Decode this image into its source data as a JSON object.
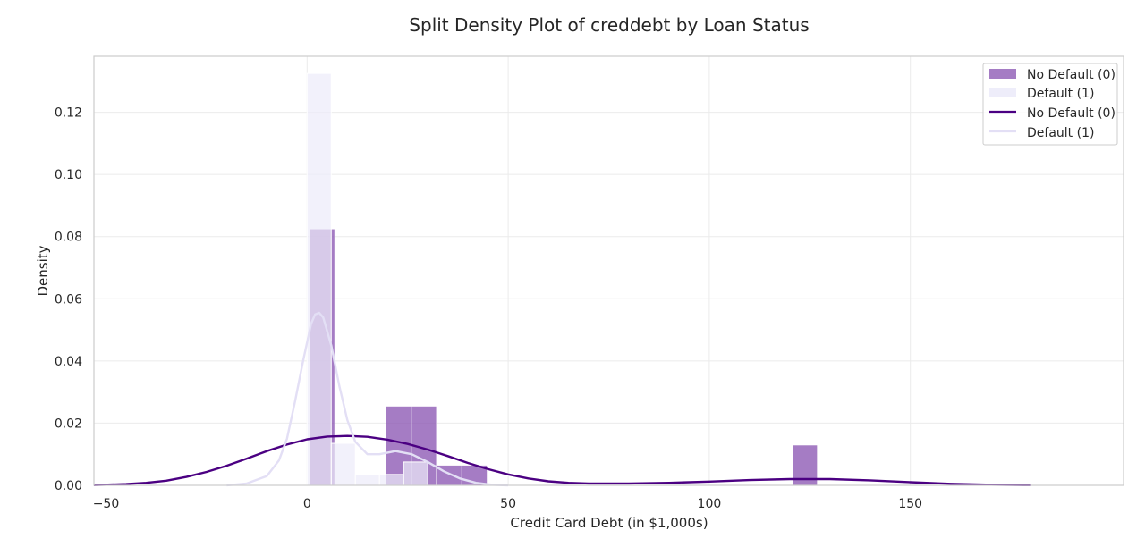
{
  "chart_data": {
    "type": "histogram-with-kde",
    "title": "Split Density Plot of creddebt by Loan Status",
    "xlabel": "Credit Card Debt (in $1,000s)",
    "ylabel": "Density",
    "xlim": [
      -53,
      203
    ],
    "ylim": [
      0,
      0.138
    ],
    "xticks": [
      -50,
      0,
      50,
      100,
      150
    ],
    "xtick_labels": [
      "−50",
      "0",
      "50",
      "100",
      "150"
    ],
    "yticks": [
      0.0,
      0.02,
      0.04,
      0.06,
      0.08,
      0.1,
      0.12
    ],
    "ytick_labels": [
      "0.00",
      "0.02",
      "0.04",
      "0.06",
      "0.08",
      "0.10",
      "0.12"
    ],
    "grid": true,
    "legend_position": "top-right",
    "legend": [
      "No Default (0)",
      "Default (1)",
      "No Default (0)",
      "Default (1)"
    ],
    "series": [
      {
        "name": "No Default (0)",
        "kind": "histogram",
        "color": "#8e5bb5",
        "opacity": 0.8,
        "bins": [
          {
            "x0": 0.6,
            "x1": 6.9,
            "density": 0.0825
          },
          {
            "x0": 19.6,
            "x1": 25.9,
            "density": 0.0255
          },
          {
            "x0": 25.9,
            "x1": 32.2,
            "density": 0.0255
          },
          {
            "x0": 32.2,
            "x1": 38.5,
            "density": 0.0065
          },
          {
            "x0": 38.5,
            "x1": 44.8,
            "density": 0.0065
          },
          {
            "x0": 120.6,
            "x1": 126.9,
            "density": 0.013
          }
        ]
      },
      {
        "name": "Default (1)",
        "kind": "histogram",
        "color": "#ecebfa",
        "opacity": 0.7,
        "bins": [
          {
            "x0": 0.0,
            "x1": 6.0,
            "density": 0.1325
          },
          {
            "x0": 6.0,
            "x1": 12.0,
            "density": 0.0135
          },
          {
            "x0": 12.0,
            "x1": 18.0,
            "density": 0.0035
          },
          {
            "x0": 18.0,
            "x1": 24.0,
            "density": 0.0035
          },
          {
            "x0": 24.0,
            "x1": 30.0,
            "density": 0.0075
          }
        ]
      },
      {
        "name": "No Default (0)",
        "kind": "kde",
        "color": "#4b0082",
        "points": [
          [
            -53,
            0.0001
          ],
          [
            -45,
            0.0004
          ],
          [
            -40,
            0.0008
          ],
          [
            -35,
            0.0015
          ],
          [
            -30,
            0.0027
          ],
          [
            -25,
            0.0043
          ],
          [
            -20,
            0.0063
          ],
          [
            -15,
            0.0086
          ],
          [
            -10,
            0.011
          ],
          [
            -5,
            0.0131
          ],
          [
            0,
            0.0148
          ],
          [
            5,
            0.0157
          ],
          [
            10,
            0.0159
          ],
          [
            15,
            0.0156
          ],
          [
            20,
            0.0147
          ],
          [
            25,
            0.0133
          ],
          [
            30,
            0.0115
          ],
          [
            35,
            0.0094
          ],
          [
            40,
            0.0072
          ],
          [
            45,
            0.0052
          ],
          [
            50,
            0.0035
          ],
          [
            55,
            0.0022
          ],
          [
            60,
            0.0013
          ],
          [
            65,
            0.0008
          ],
          [
            70,
            0.0006
          ],
          [
            80,
            0.0006
          ],
          [
            90,
            0.0008
          ],
          [
            100,
            0.0012
          ],
          [
            110,
            0.0017
          ],
          [
            120,
            0.002
          ],
          [
            130,
            0.002
          ],
          [
            140,
            0.0016
          ],
          [
            150,
            0.001
          ],
          [
            160,
            0.0005
          ],
          [
            170,
            0.0002
          ],
          [
            180,
            0.0001
          ]
        ]
      },
      {
        "name": "Default (1)",
        "kind": "kde",
        "color": "#e3dff5",
        "points": [
          [
            -20,
            0.0
          ],
          [
            -15,
            0.0006
          ],
          [
            -10,
            0.003
          ],
          [
            -7,
            0.008
          ],
          [
            -5,
            0.015
          ],
          [
            -3,
            0.027
          ],
          [
            -1,
            0.04
          ],
          [
            1,
            0.052
          ],
          [
            2,
            0.055
          ],
          [
            3,
            0.0555
          ],
          [
            4,
            0.054
          ],
          [
            6,
            0.045
          ],
          [
            8,
            0.032
          ],
          [
            10,
            0.021
          ],
          [
            12,
            0.014
          ],
          [
            15,
            0.01
          ],
          [
            18,
            0.01
          ],
          [
            22,
            0.011
          ],
          [
            26,
            0.01
          ],
          [
            30,
            0.0075
          ],
          [
            34,
            0.0045
          ],
          [
            38,
            0.0022
          ],
          [
            42,
            0.0008
          ],
          [
            46,
            0.0002
          ],
          [
            50,
            0.0
          ]
        ]
      }
    ]
  }
}
